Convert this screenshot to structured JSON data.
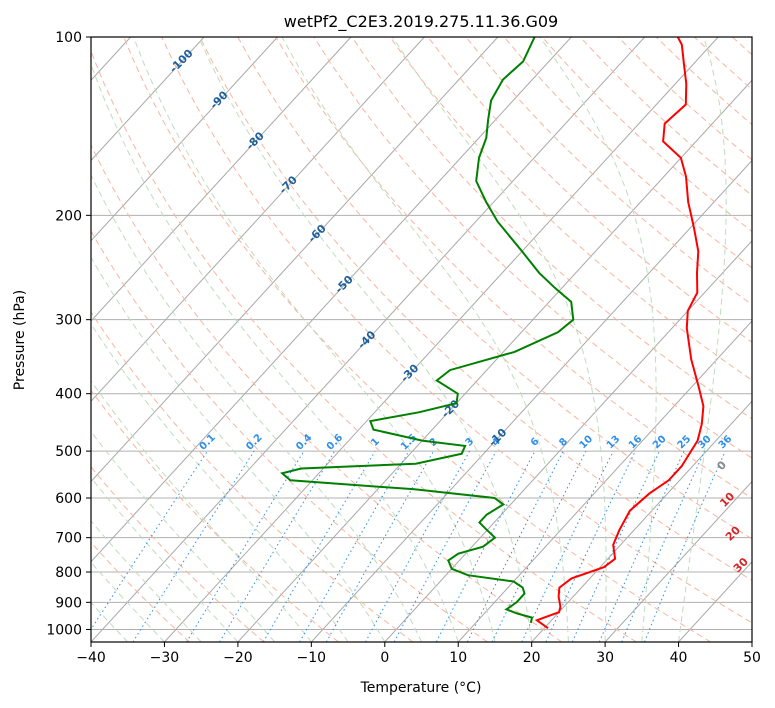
{
  "chart_data": {
    "type": "line",
    "title": "wetPf2_C2E3.2019.275.11.36.G09",
    "xlabel": "Temperature (°C)",
    "ylabel": "Pressure (hPa)",
    "xlim": [
      -40,
      50
    ],
    "ylim": [
      1050,
      100
    ],
    "y_scale": "log",
    "grid": true,
    "x_ticks": [
      "−40",
      "−30",
      "−20",
      "−10",
      "0",
      "10",
      "20",
      "30",
      "40",
      "50"
    ],
    "y_ticks": [
      "100",
      "200",
      "300",
      "400",
      "500",
      "600",
      "700",
      "800",
      "900",
      "1000"
    ],
    "series": [
      {
        "color": "#ff0000",
        "points": [
          [
            20.5,
            995
          ],
          [
            18.0,
            965
          ],
          [
            19.0,
            950
          ],
          [
            20.0,
            935
          ],
          [
            19.5,
            915
          ],
          [
            18.0,
            880
          ],
          [
            17.0,
            850
          ],
          [
            17.5,
            820
          ],
          [
            20.5,
            785
          ],
          [
            21.0,
            760
          ],
          [
            19.0,
            720
          ],
          [
            18.0,
            680
          ],
          [
            17.0,
            630
          ],
          [
            17.5,
            590
          ],
          [
            18.5,
            560
          ],
          [
            18.5,
            530
          ],
          [
            17.5,
            480
          ],
          [
            16.0,
            450
          ],
          [
            14.0,
            420
          ],
          [
            11.0,
            390
          ],
          [
            6.5,
            350
          ],
          [
            2.0,
            310
          ],
          [
            0.0,
            290
          ],
          [
            -1.0,
            270
          ],
          [
            -3.5,
            250
          ],
          [
            -6.0,
            230
          ],
          [
            -9.5,
            210
          ],
          [
            -13.5,
            190
          ],
          [
            -17.0,
            172
          ],
          [
            -20.0,
            160
          ],
          [
            -24.5,
            150
          ],
          [
            -26.5,
            140
          ],
          [
            -26.0,
            130
          ],
          [
            -28.5,
            120
          ],
          [
            -31.0,
            112
          ],
          [
            -34.0,
            103
          ],
          [
            -35.5,
            100
          ]
        ]
      },
      {
        "color": "#008000",
        "points": [
          [
            17.5,
            975
          ],
          [
            17.0,
            955
          ],
          [
            14.5,
            940
          ],
          [
            12.5,
            925
          ],
          [
            13.0,
            900
          ],
          [
            13.0,
            870
          ],
          [
            12.0,
            850
          ],
          [
            10.0,
            830
          ],
          [
            3.0,
            810
          ],
          [
            0.0,
            790
          ],
          [
            -1.5,
            765
          ],
          [
            -1.0,
            745
          ],
          [
            1.5,
            725
          ],
          [
            2.0,
            700
          ],
          [
            0.0,
            680
          ],
          [
            -2.0,
            660
          ],
          [
            -2.0,
            640
          ],
          [
            -1.0,
            615
          ],
          [
            -3.0,
            600
          ],
          [
            -15.0,
            580
          ],
          [
            -33.0,
            560
          ],
          [
            -35.0,
            545
          ],
          [
            -33.0,
            535
          ],
          [
            -18.0,
            525
          ],
          [
            -13.0,
            505
          ],
          [
            -13.5,
            490
          ],
          [
            -20.0,
            480
          ],
          [
            -28.0,
            460
          ],
          [
            -29.5,
            445
          ],
          [
            -24.0,
            430
          ],
          [
            -20.0,
            415
          ],
          [
            -21.0,
            400
          ],
          [
            -25.5,
            380
          ],
          [
            -25.0,
            365
          ],
          [
            -18.5,
            340
          ],
          [
            -15.0,
            315
          ],
          [
            -14.5,
            300
          ],
          [
            -17.0,
            280
          ],
          [
            -21.0,
            265
          ],
          [
            -25.0,
            250
          ],
          [
            -30.0,
            230
          ],
          [
            -37.0,
            205
          ],
          [
            -41.0,
            190
          ],
          [
            -45.0,
            175
          ],
          [
            -47.5,
            160
          ],
          [
            -49.0,
            148
          ],
          [
            -51.0,
            138
          ],
          [
            -53.0,
            128
          ],
          [
            -54.0,
            118
          ],
          [
            -53.5,
            110
          ],
          [
            -55.0,
            100
          ]
        ]
      }
    ],
    "isotherm_labels": [
      "-100",
      "-90",
      "-80",
      "-70",
      "-60",
      "-50",
      "-40",
      "-30",
      "-20",
      "-10"
    ],
    "mixing_ratio_labels": [
      "0.1",
      "0.2",
      "0.4",
      "0.6",
      "1",
      "1.5",
      "2",
      "3",
      "4",
      "6",
      "8",
      "10",
      "13",
      "16",
      "20",
      "25",
      "30",
      "36"
    ],
    "lcl_labels": [
      "0",
      "10",
      "20",
      "30",
      "40"
    ]
  }
}
